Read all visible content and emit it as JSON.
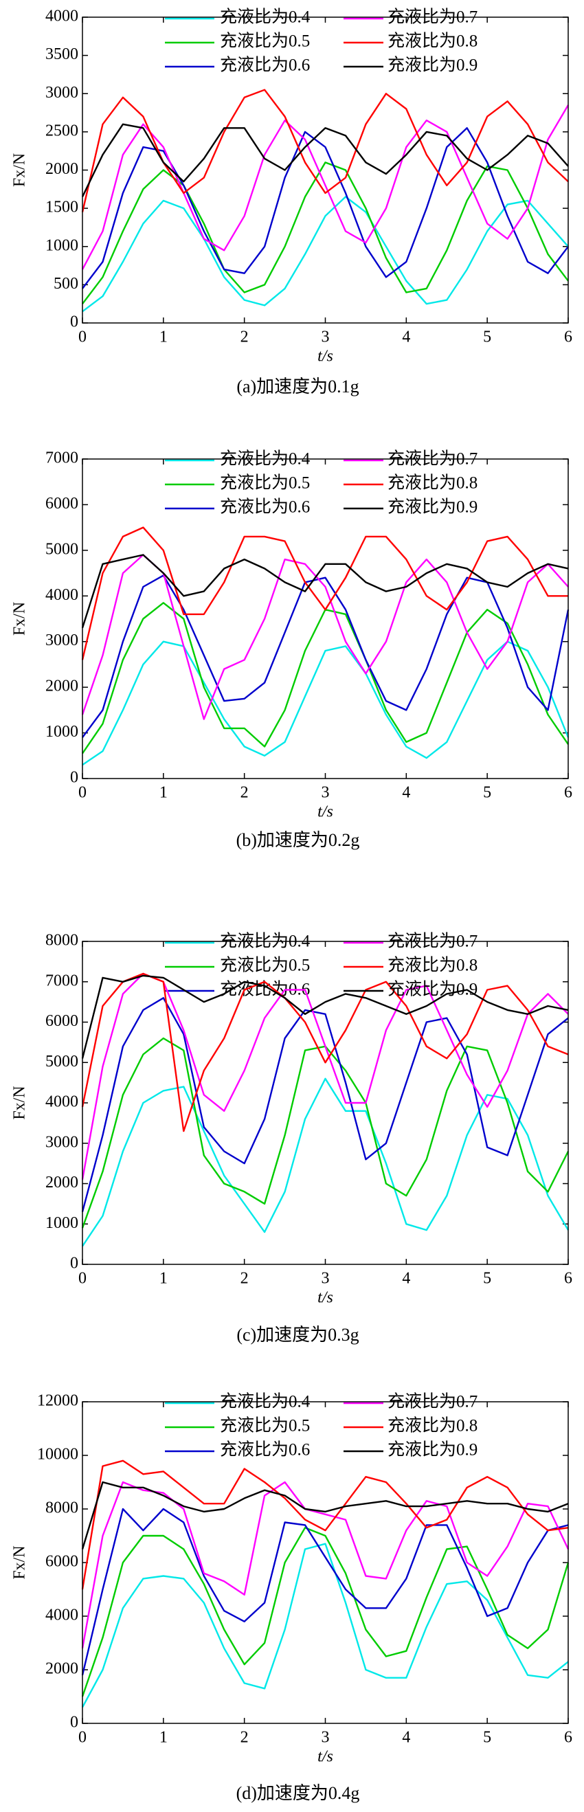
{
  "chart_data": [
    {
      "type": "line",
      "caption": "(a)加速度为0.1g",
      "xlabel": "t/s",
      "ylabel": "Fx/N",
      "x": [
        0,
        0.25,
        0.5,
        0.75,
        1,
        1.25,
        1.5,
        1.75,
        2,
        2.25,
        2.5,
        2.75,
        3,
        3.25,
        3.5,
        3.75,
        4,
        4.25,
        4.5,
        4.75,
        5,
        5.25,
        5.5,
        5.75,
        6
      ],
      "xlim": [
        0,
        6
      ],
      "xticks": [
        0,
        1,
        2,
        3,
        4,
        5,
        6
      ],
      "ylim": [
        0,
        4000
      ],
      "yticks": [
        0,
        500,
        1000,
        1500,
        2000,
        2500,
        3000,
        3500,
        4000
      ],
      "series": [
        {
          "name": "充液比为0.4",
          "color": "#00e8e8",
          "values": [
            150,
            350,
            800,
            1300,
            1600,
            1500,
            1100,
            600,
            300,
            230,
            450,
            900,
            1400,
            1650,
            1450,
            1000,
            550,
            250,
            300,
            700,
            1200,
            1550,
            1600,
            1300,
            1000
          ]
        },
        {
          "name": "充液比为0.5",
          "color": "#00cc00",
          "values": [
            250,
            600,
            1200,
            1750,
            2000,
            1800,
            1300,
            700,
            400,
            500,
            1000,
            1650,
            2100,
            2000,
            1500,
            850,
            400,
            450,
            950,
            1600,
            2050,
            2000,
            1500,
            900,
            550
          ]
        },
        {
          "name": "充液比为0.6",
          "color": "#0000cc",
          "values": [
            450,
            800,
            1700,
            2300,
            2250,
            1800,
            1200,
            700,
            650,
            1000,
            1900,
            2500,
            2300,
            1700,
            1000,
            600,
            800,
            1500,
            2300,
            2550,
            2100,
            1400,
            800,
            650,
            1000
          ]
        },
        {
          "name": "充液比为0.7",
          "color": "#ff00ff",
          "values": [
            700,
            1200,
            2200,
            2600,
            2300,
            1700,
            1100,
            950,
            1400,
            2200,
            2650,
            2400,
            1800,
            1200,
            1050,
            1500,
            2300,
            2650,
            2500,
            1900,
            1300,
            1100,
            1500,
            2400,
            2850
          ]
        },
        {
          "name": "充液比为0.8",
          "color": "#ff0000",
          "values": [
            1450,
            2600,
            2950,
            2700,
            2100,
            1700,
            1900,
            2500,
            2950,
            3050,
            2700,
            2100,
            1700,
            1900,
            2600,
            3000,
            2800,
            2200,
            1800,
            2100,
            2700,
            2900,
            2600,
            2100,
            1850
          ]
        },
        {
          "name": "充液比为0.9",
          "color": "#000000",
          "values": [
            1650,
            2200,
            2600,
            2550,
            2100,
            1850,
            2150,
            2550,
            2550,
            2150,
            2000,
            2300,
            2550,
            2450,
            2100,
            1950,
            2200,
            2500,
            2450,
            2150,
            2000,
            2200,
            2450,
            2350,
            2050
          ]
        }
      ]
    },
    {
      "type": "line",
      "caption": "(b)加速度为0.2g",
      "xlabel": "t/s",
      "ylabel": "Fx/N",
      "x": [
        0,
        0.25,
        0.5,
        0.75,
        1,
        1.25,
        1.5,
        1.75,
        2,
        2.25,
        2.5,
        2.75,
        3,
        3.25,
        3.5,
        3.75,
        4,
        4.25,
        4.5,
        4.75,
        5,
        5.25,
        5.5,
        5.75,
        6
      ],
      "xlim": [
        0,
        6
      ],
      "xticks": [
        0,
        1,
        2,
        3,
        4,
        5,
        6
      ],
      "ylim": [
        0,
        7000
      ],
      "yticks": [
        0,
        1000,
        2000,
        3000,
        4000,
        5000,
        6000,
        7000
      ],
      "series": [
        {
          "name": "充液比为0.4",
          "color": "#00e8e8",
          "values": [
            300,
            600,
            1500,
            2500,
            3000,
            2900,
            2100,
            1300,
            700,
            500,
            800,
            1800,
            2800,
            2900,
            2300,
            1400,
            700,
            450,
            800,
            1700,
            2600,
            3000,
            2800,
            2000,
            900
          ]
        },
        {
          "name": "充液比为0.5",
          "color": "#00cc00",
          "values": [
            550,
            1200,
            2600,
            3500,
            3850,
            3500,
            2000,
            1100,
            1100,
            700,
            1500,
            2800,
            3700,
            3600,
            2600,
            1500,
            800,
            1000,
            2100,
            3200,
            3700,
            3400,
            2500,
            1400,
            750
          ]
        },
        {
          "name": "充液比为0.6",
          "color": "#0000cc",
          "values": [
            900,
            1500,
            3000,
            4200,
            4450,
            3700,
            2700,
            1700,
            1750,
            2100,
            3200,
            4300,
            4400,
            3700,
            2600,
            1700,
            1500,
            2400,
            3600,
            4400,
            4300,
            3300,
            2000,
            1500,
            3700
          ]
        },
        {
          "name": "充液比为0.7",
          "color": "#ff00ff",
          "values": [
            1400,
            2700,
            4500,
            4900,
            4500,
            2900,
            1300,
            2400,
            2600,
            3500,
            4800,
            4700,
            4200,
            3000,
            2300,
            3000,
            4300,
            4800,
            4300,
            3200,
            2400,
            3000,
            4300,
            4700,
            4200
          ]
        },
        {
          "name": "充液比为0.8",
          "color": "#ff0000",
          "values": [
            2600,
            4500,
            5300,
            5500,
            5000,
            3600,
            3600,
            4300,
            5300,
            5300,
            5200,
            4300,
            3700,
            4400,
            5300,
            5300,
            4800,
            4000,
            3700,
            4300,
            5200,
            5300,
            4800,
            4000,
            4000
          ]
        },
        {
          "name": "充液比为0.9",
          "color": "#000000",
          "values": [
            3300,
            4700,
            4800,
            4900,
            4500,
            4000,
            4100,
            4600,
            4800,
            4600,
            4300,
            4100,
            4700,
            4700,
            4300,
            4100,
            4200,
            4500,
            4700,
            4600,
            4300,
            4200,
            4500,
            4700,
            4600
          ]
        }
      ]
    },
    {
      "type": "line",
      "caption": "(c)加速度为0.3g",
      "xlabel": "t/s",
      "ylabel": "Fx/N",
      "x": [
        0,
        0.25,
        0.5,
        0.75,
        1,
        1.25,
        1.5,
        1.75,
        2,
        2.25,
        2.5,
        2.75,
        3,
        3.25,
        3.5,
        3.75,
        4,
        4.25,
        4.5,
        4.75,
        5,
        5.25,
        5.5,
        5.75,
        6
      ],
      "xlim": [
        0,
        6
      ],
      "xticks": [
        0,
        1,
        2,
        3,
        4,
        5,
        6
      ],
      "ylim": [
        0,
        8000
      ],
      "yticks": [
        0,
        1000,
        2000,
        3000,
        4000,
        5000,
        6000,
        7000,
        8000
      ],
      "series": [
        {
          "name": "充液比为0.4",
          "color": "#00e8e8",
          "values": [
            450,
            1200,
            2800,
            4000,
            4300,
            4400,
            3300,
            2200,
            1500,
            800,
            1800,
            3600,
            4600,
            3800,
            3800,
            2500,
            1000,
            850,
            1700,
            3200,
            4200,
            4100,
            3200,
            1700,
            850
          ]
        },
        {
          "name": "充液比为0.5",
          "color": "#00cc00",
          "values": [
            900,
            2300,
            4200,
            5200,
            5600,
            5300,
            2700,
            2000,
            1800,
            1500,
            3200,
            5300,
            5400,
            4800,
            4000,
            2000,
            1700,
            2600,
            4300,
            5400,
            5300,
            4000,
            2300,
            1800,
            2800
          ]
        },
        {
          "name": "充液比为0.6",
          "color": "#0000cc",
          "values": [
            1300,
            3200,
            5400,
            6300,
            6600,
            5700,
            3400,
            2800,
            2500,
            3600,
            5600,
            6300,
            6200,
            4500,
            2600,
            3000,
            4500,
            6000,
            6100,
            5200,
            2900,
            2700,
            4200,
            5700,
            6100
          ]
        },
        {
          "name": "充液比为0.7",
          "color": "#ff00ff",
          "values": [
            2100,
            4900,
            6700,
            7200,
            7000,
            5800,
            4200,
            3800,
            4800,
            6100,
            6800,
            6800,
            5400,
            4000,
            4000,
            5800,
            6800,
            6900,
            5800,
            4700,
            3900,
            4800,
            6200,
            6700,
            6200
          ]
        },
        {
          "name": "充液比为0.8",
          "color": "#ff0000",
          "values": [
            3900,
            6400,
            7000,
            7200,
            7000,
            3300,
            4800,
            5600,
            6800,
            7000,
            6600,
            6000,
            5000,
            5800,
            6800,
            7000,
            6400,
            5400,
            5100,
            5700,
            6800,
            6900,
            6300,
            5400,
            5200
          ]
        },
        {
          "name": "充液比为0.9",
          "color": "#000000",
          "values": [
            5100,
            7100,
            7000,
            7150,
            7100,
            6800,
            6500,
            6700,
            7000,
            6900,
            6600,
            6200,
            6500,
            6700,
            6600,
            6400,
            6200,
            6400,
            6700,
            6800,
            6500,
            6300,
            6200,
            6400,
            6300
          ]
        }
      ]
    },
    {
      "type": "line",
      "caption": "(d)加速度为0.4g",
      "xlabel": "t/s",
      "ylabel": "Fx/N",
      "x": [
        0,
        0.25,
        0.5,
        0.75,
        1,
        1.25,
        1.5,
        1.75,
        2,
        2.25,
        2.5,
        2.75,
        3,
        3.25,
        3.5,
        3.75,
        4,
        4.25,
        4.5,
        4.75,
        5,
        5.25,
        5.5,
        5.75,
        6
      ],
      "xlim": [
        0,
        6
      ],
      "xticks": [
        0,
        1,
        2,
        3,
        4,
        5,
        6
      ],
      "ylim": [
        0,
        12000
      ],
      "yticks": [
        0,
        2000,
        4000,
        6000,
        8000,
        10000,
        12000
      ],
      "series": [
        {
          "name": "充液比为0.4",
          "color": "#00e8e8",
          "values": [
            600,
            2000,
            4300,
            5400,
            5500,
            5400,
            4500,
            2800,
            1500,
            1300,
            3500,
            6500,
            6700,
            4500,
            2000,
            1700,
            1700,
            3600,
            5200,
            5300,
            4600,
            3200,
            1800,
            1700,
            2300
          ]
        },
        {
          "name": "充液比为0.5",
          "color": "#00cc00",
          "values": [
            1000,
            3200,
            6000,
            7000,
            7000,
            6500,
            5200,
            3500,
            2200,
            3000,
            6000,
            7300,
            7000,
            5600,
            3500,
            2500,
            2700,
            4700,
            6500,
            6600,
            5000,
            3300,
            2800,
            3500,
            6000
          ]
        },
        {
          "name": "充液比为0.6",
          "color": "#0000cc",
          "values": [
            1800,
            5000,
            8000,
            7200,
            8000,
            7500,
            5500,
            4200,
            3800,
            4500,
            7500,
            7400,
            6200,
            5000,
            4300,
            4300,
            5400,
            7400,
            7400,
            5800,
            4000,
            4300,
            6000,
            7200,
            7400
          ]
        },
        {
          "name": "充液比为0.7",
          "color": "#ff00ff",
          "values": [
            2800,
            7000,
            9000,
            8700,
            8600,
            8000,
            5600,
            5300,
            4800,
            8500,
            9000,
            8000,
            7800,
            7600,
            5500,
            5400,
            7200,
            8300,
            8100,
            6000,
            5500,
            6600,
            8200,
            8100,
            6500
          ]
        },
        {
          "name": "充液比为0.8",
          "color": "#ff0000",
          "values": [
            5000,
            9600,
            9800,
            9300,
            9400,
            8800,
            8200,
            8200,
            9500,
            9000,
            8400,
            7600,
            7200,
            8200,
            9200,
            9000,
            8200,
            7300,
            7600,
            8800,
            9200,
            8800,
            7800,
            7200,
            7300
          ]
        },
        {
          "name": "充液比为0.9",
          "color": "#000000",
          "values": [
            6500,
            9000,
            8800,
            8800,
            8500,
            8100,
            7900,
            8000,
            8400,
            8700,
            8500,
            8000,
            7900,
            8100,
            8200,
            8300,
            8100,
            8100,
            8200,
            8300,
            8200,
            8200,
            8000,
            7900,
            8200
          ]
        }
      ]
    }
  ]
}
